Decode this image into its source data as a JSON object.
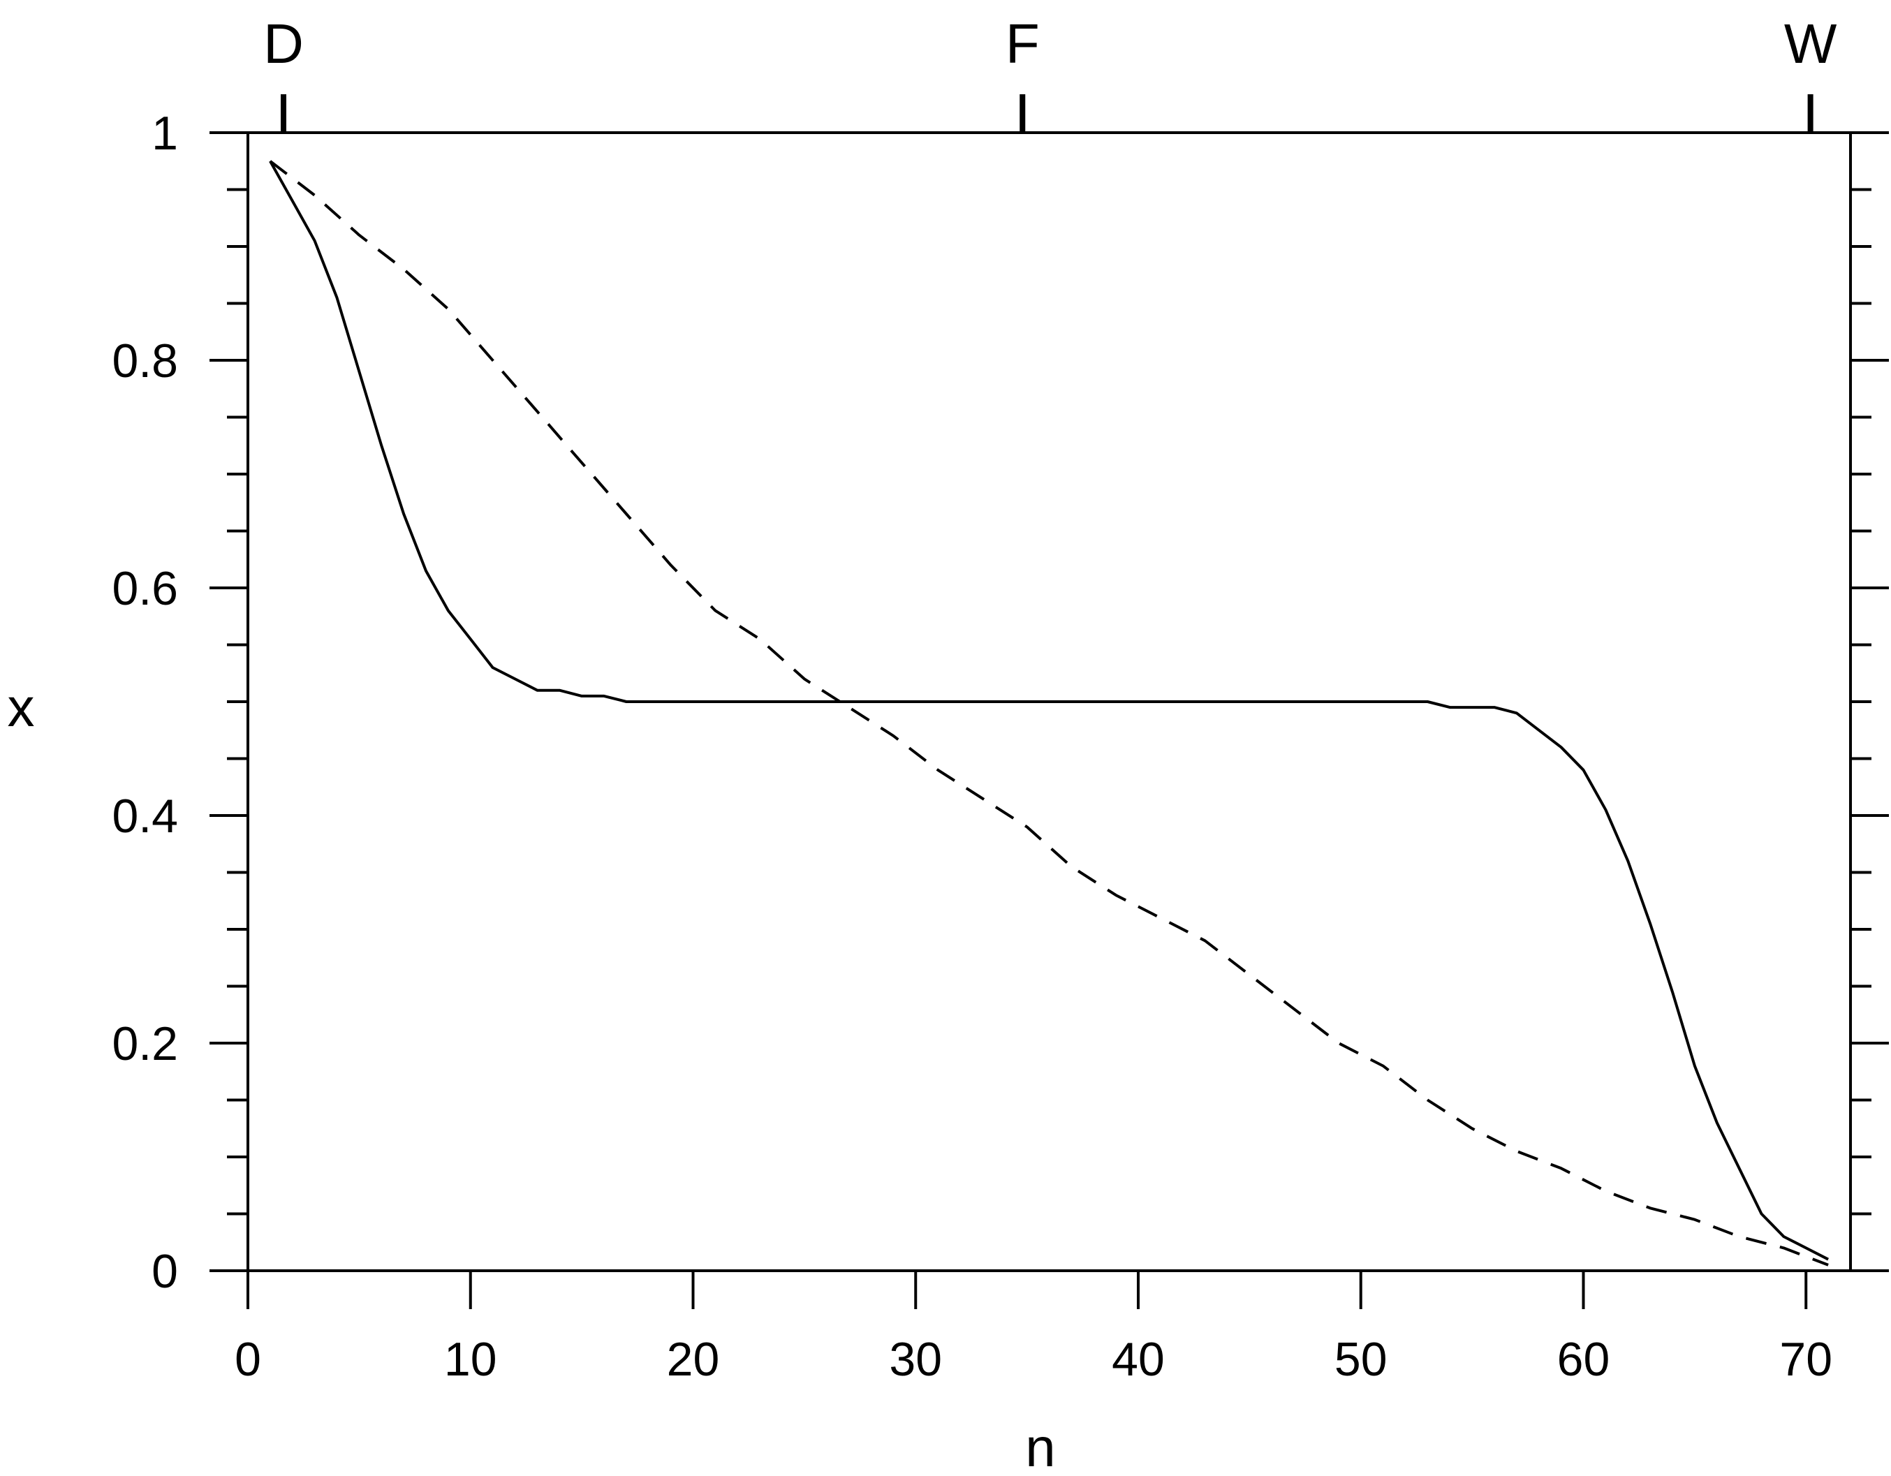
{
  "chart_data": {
    "type": "line",
    "xlabel": "n",
    "ylabel": "x",
    "xlim": [
      0,
      72
    ],
    "ylim": [
      0,
      1
    ],
    "x_ticks": [
      0,
      10,
      20,
      30,
      40,
      50,
      60,
      70
    ],
    "x_tick_labels": [
      "0",
      "10",
      "20",
      "30",
      "40",
      "50",
      "60",
      "70"
    ],
    "y_ticks": [
      0,
      0.2,
      0.4,
      0.6,
      0.8,
      1
    ],
    "y_tick_labels": [
      "0",
      "0.2",
      "0.4",
      "0.6",
      "0.8",
      "1"
    ],
    "y_minor_step": 0.05,
    "top_markers": [
      {
        "label": "D",
        "n": 1.6
      },
      {
        "label": "F",
        "n": 34.8
      },
      {
        "label": "W",
        "n": 70.2
      }
    ],
    "grid": false,
    "series": [
      {
        "style": "solid",
        "color": "#000000",
        "x": [
          1,
          2,
          3,
          4,
          5,
          6,
          7,
          8,
          9,
          10,
          11,
          12,
          13,
          14,
          15,
          16,
          17,
          20,
          25,
          30,
          35,
          40,
          45,
          50,
          53,
          54,
          55,
          56,
          57,
          58,
          59,
          60,
          61,
          62,
          63,
          64,
          65,
          66,
          67,
          68,
          69,
          70,
          71
        ],
        "y": [
          0.975,
          0.94,
          0.905,
          0.855,
          0.79,
          0.725,
          0.665,
          0.615,
          0.58,
          0.555,
          0.53,
          0.52,
          0.51,
          0.51,
          0.505,
          0.505,
          0.5,
          0.5,
          0.5,
          0.5,
          0.5,
          0.5,
          0.5,
          0.5,
          0.5,
          0.495,
          0.495,
          0.495,
          0.49,
          0.475,
          0.46,
          0.44,
          0.405,
          0.36,
          0.305,
          0.245,
          0.18,
          0.13,
          0.09,
          0.05,
          0.03,
          0.02,
          0.01
        ]
      },
      {
        "style": "dashed",
        "color": "#000000",
        "x": [
          1,
          3,
          5,
          7,
          9,
          11,
          13,
          15,
          17,
          19,
          21,
          23,
          25,
          27,
          29,
          31,
          33,
          35,
          37,
          39,
          41,
          43,
          45,
          47,
          49,
          51,
          53,
          55,
          57,
          59,
          61,
          63,
          65,
          67,
          69,
          71
        ],
        "y": [
          0.975,
          0.945,
          0.91,
          0.88,
          0.845,
          0.8,
          0.755,
          0.71,
          0.665,
          0.62,
          0.58,
          0.555,
          0.52,
          0.495,
          0.47,
          0.44,
          0.415,
          0.39,
          0.355,
          0.33,
          0.31,
          0.29,
          0.26,
          0.23,
          0.2,
          0.18,
          0.15,
          0.125,
          0.105,
          0.09,
          0.07,
          0.055,
          0.045,
          0.03,
          0.02,
          0.005
        ]
      }
    ]
  }
}
